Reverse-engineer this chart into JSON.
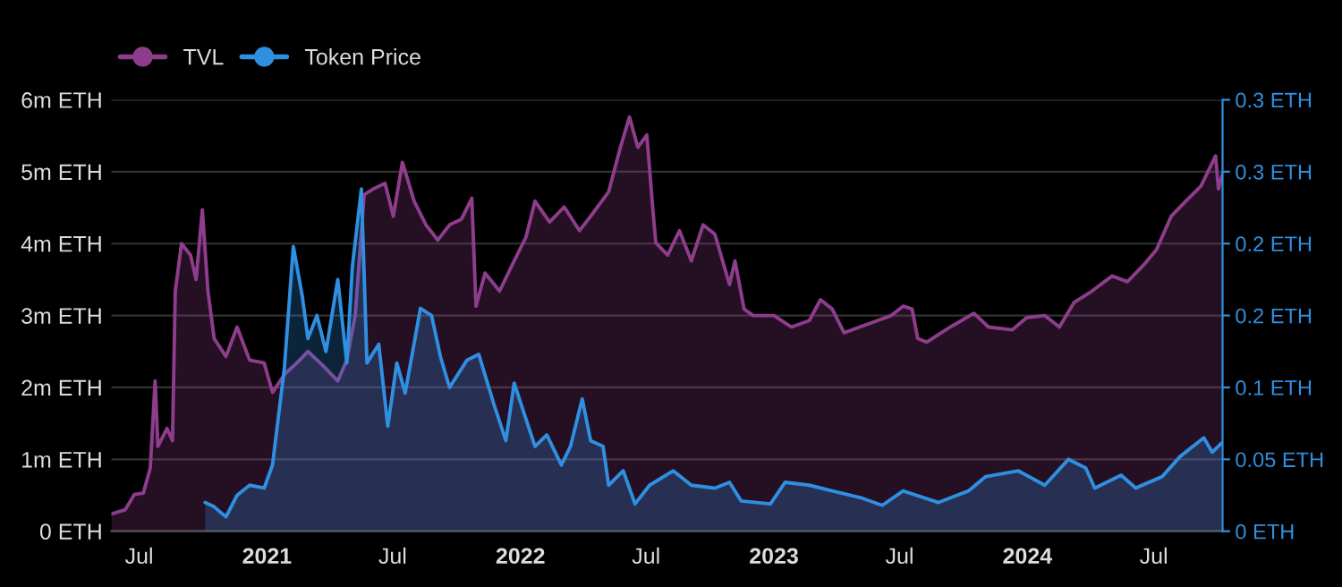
{
  "chart_data": {
    "type": "area",
    "legend": "top left",
    "grid": "y",
    "xlim": [
      "2020-05-22",
      "2024-10-08"
    ],
    "xticks": [
      {
        "value": "2020-07-01",
        "label": "Jul"
      },
      {
        "value": "2021-01-01",
        "label": "2021"
      },
      {
        "value": "2021-07-01",
        "label": "Jul"
      },
      {
        "value": "2022-01-01",
        "label": "2022"
      },
      {
        "value": "2022-07-01",
        "label": "Jul"
      },
      {
        "value": "2023-01-01",
        "label": "2023"
      },
      {
        "value": "2023-07-01",
        "label": "Jul"
      },
      {
        "value": "2024-01-01",
        "label": "2024"
      },
      {
        "value": "2024-07-01",
        "label": "Jul"
      }
    ],
    "ylim": [
      0,
      6000000
    ],
    "yticks": [
      {
        "value": 0,
        "label": "0 ETH"
      },
      {
        "value": 1000000,
        "label": "1m ETH"
      },
      {
        "value": 2000000,
        "label": "2m ETH"
      },
      {
        "value": 3000000,
        "label": "3m ETH"
      },
      {
        "value": 4000000,
        "label": "4m ETH"
      },
      {
        "value": 5000000,
        "label": "5m ETH"
      },
      {
        "value": 6000000,
        "label": "6m ETH"
      }
    ],
    "y2lim": [
      0,
      0.3
    ],
    "y2ticks": [
      {
        "value": 0,
        "label": "0 ETH"
      },
      {
        "value": 0.05,
        "label": "0.05 ETH"
      },
      {
        "value": 0.1,
        "label": "0.1 ETH"
      },
      {
        "value": 0.15,
        "label": "0.2 ETH"
      },
      {
        "value": 0.2,
        "label": "0.2 ETH"
      },
      {
        "value": 0.25,
        "label": "0.3 ETH"
      },
      {
        "value": 0.3,
        "label": "0.3 ETH"
      }
    ],
    "series": [
      {
        "name": "TVL",
        "color": "#8e3d8c",
        "x": [
          "2020-05-22",
          "2020-06-11",
          "2020-06-24",
          "2020-07-07",
          "2020-07-17",
          "2020-07-24",
          "2020-07-28",
          "2020-08-10",
          "2020-08-18",
          "2020-08-22",
          "2020-08-31",
          "2020-09-13",
          "2020-09-21",
          "2020-09-30",
          "2020-10-08",
          "2020-10-17",
          "2020-11-03",
          "2020-11-19",
          "2020-12-07",
          "2020-12-28",
          "2021-01-09",
          "2021-01-26",
          "2021-02-13",
          "2021-03-01",
          "2021-03-23",
          "2021-04-13",
          "2021-04-26",
          "2021-05-08",
          "2021-05-21",
          "2021-06-03",
          "2021-06-20",
          "2021-07-02",
          "2021-07-15",
          "2021-08-01",
          "2021-08-18",
          "2021-09-04",
          "2021-09-21",
          "2021-10-08",
          "2021-10-23",
          "2021-10-29",
          "2021-11-11",
          "2021-12-02",
          "2021-12-23",
          "2022-01-09",
          "2022-01-22",
          "2022-02-12",
          "2022-03-05",
          "2022-03-27",
          "2022-04-12",
          "2022-05-08",
          "2022-05-25",
          "2022-06-07",
          "2022-06-19",
          "2022-07-02",
          "2022-07-11",
          "2022-07-15",
          "2022-08-01",
          "2022-08-18",
          "2022-09-04",
          "2022-09-21",
          "2022-10-08",
          "2022-10-29",
          "2022-11-06",
          "2022-11-19",
          "2022-12-02",
          "2023-01-01",
          "2023-01-26",
          "2023-02-21",
          "2023-03-09",
          "2023-03-26",
          "2023-04-12",
          "2023-05-16",
          "2023-06-19",
          "2023-07-06",
          "2023-07-19",
          "2023-07-27",
          "2023-08-09",
          "2023-09-12",
          "2023-10-16",
          "2023-11-06",
          "2023-12-10",
          "2023-12-31",
          "2024-01-26",
          "2024-02-16",
          "2024-03-08",
          "2024-04-03",
          "2024-05-02",
          "2024-05-24",
          "2024-06-18",
          "2024-07-05",
          "2024-07-26",
          "2024-08-16",
          "2024-09-07",
          "2024-09-28",
          "2024-10-02",
          "2024-10-08"
        ],
        "values": [
          240000,
          300000,
          510000,
          530000,
          880000,
          2090000,
          1180000,
          1430000,
          1260000,
          3340000,
          4000000,
          3840000,
          3500000,
          4470000,
          3340000,
          2680000,
          2430000,
          2840000,
          2380000,
          2340000,
          1930000,
          2180000,
          2340000,
          2500000,
          2300000,
          2090000,
          2380000,
          3000000,
          4680000,
          4760000,
          4840000,
          4380000,
          5130000,
          4590000,
          4260000,
          4050000,
          4260000,
          4340000,
          4630000,
          3130000,
          3590000,
          3340000,
          3760000,
          4090000,
          4590000,
          4300000,
          4510000,
          4180000,
          4380000,
          4720000,
          5340000,
          5760000,
          5340000,
          5510000,
          4430000,
          4010000,
          3840000,
          4180000,
          3760000,
          4260000,
          4130000,
          3430000,
          3760000,
          3090000,
          3000000,
          3000000,
          2840000,
          2930000,
          3220000,
          3090000,
          2760000,
          2880000,
          3000000,
          3130000,
          3090000,
          2680000,
          2630000,
          2840000,
          3030000,
          2840000,
          2800000,
          2970000,
          3000000,
          2840000,
          3180000,
          3340000,
          3550000,
          3470000,
          3720000,
          3920000,
          4380000,
          4590000,
          4800000,
          5220000,
          4760000,
          4970000
        ]
      },
      {
        "name": "Token Price",
        "color": "#2f8fe0",
        "axis": "y2",
        "x": [
          "2020-10-04",
          "2020-10-17",
          "2020-11-03",
          "2020-11-19",
          "2020-12-07",
          "2020-12-28",
          "2021-01-09",
          "2021-01-26",
          "2021-02-08",
          "2021-02-21",
          "2021-03-01",
          "2021-03-14",
          "2021-03-27",
          "2021-04-13",
          "2021-04-26",
          "2021-05-04",
          "2021-05-17",
          "2021-05-25",
          "2021-06-11",
          "2021-06-24",
          "2021-07-07",
          "2021-07-19",
          "2021-08-10",
          "2021-08-26",
          "2021-09-08",
          "2021-09-21",
          "2021-10-16",
          "2021-11-02",
          "2021-11-24",
          "2021-12-11",
          "2021-12-23",
          "2022-01-09",
          "2022-01-22",
          "2022-02-08",
          "2022-03-01",
          "2022-03-14",
          "2022-03-31",
          "2022-04-12",
          "2022-04-30",
          "2022-05-08",
          "2022-05-29",
          "2022-06-15",
          "2022-07-06",
          "2022-08-09",
          "2022-09-04",
          "2022-10-08",
          "2022-10-29",
          "2022-11-15",
          "2022-12-27",
          "2023-01-17",
          "2023-02-21",
          "2023-03-26",
          "2023-05-08",
          "2023-06-06",
          "2023-07-06",
          "2023-08-26",
          "2023-10-08",
          "2023-11-02",
          "2023-12-19",
          "2024-01-26",
          "2024-02-29",
          "2024-03-25",
          "2024-04-07",
          "2024-05-15",
          "2024-06-05",
          "2024-07-13",
          "2024-08-08",
          "2024-09-11",
          "2024-09-23",
          "2024-10-06"
        ],
        "values": [
          0.02,
          0.017,
          0.01,
          0.025,
          0.032,
          0.03,
          0.046,
          0.113,
          0.198,
          0.163,
          0.134,
          0.15,
          0.125,
          0.175,
          0.117,
          0.184,
          0.238,
          0.117,
          0.13,
          0.073,
          0.117,
          0.096,
          0.155,
          0.15,
          0.121,
          0.1,
          0.119,
          0.123,
          0.088,
          0.063,
          0.103,
          0.078,
          0.059,
          0.067,
          0.046,
          0.059,
          0.092,
          0.063,
          0.059,
          0.032,
          0.042,
          0.019,
          0.032,
          0.042,
          0.032,
          0.03,
          0.034,
          0.021,
          0.019,
          0.034,
          0.032,
          0.028,
          0.023,
          0.018,
          0.028,
          0.02,
          0.028,
          0.038,
          0.042,
          0.032,
          0.05,
          0.044,
          0.03,
          0.039,
          0.03,
          0.038,
          0.052,
          0.065,
          0.055,
          0.061
        ]
      }
    ]
  }
}
